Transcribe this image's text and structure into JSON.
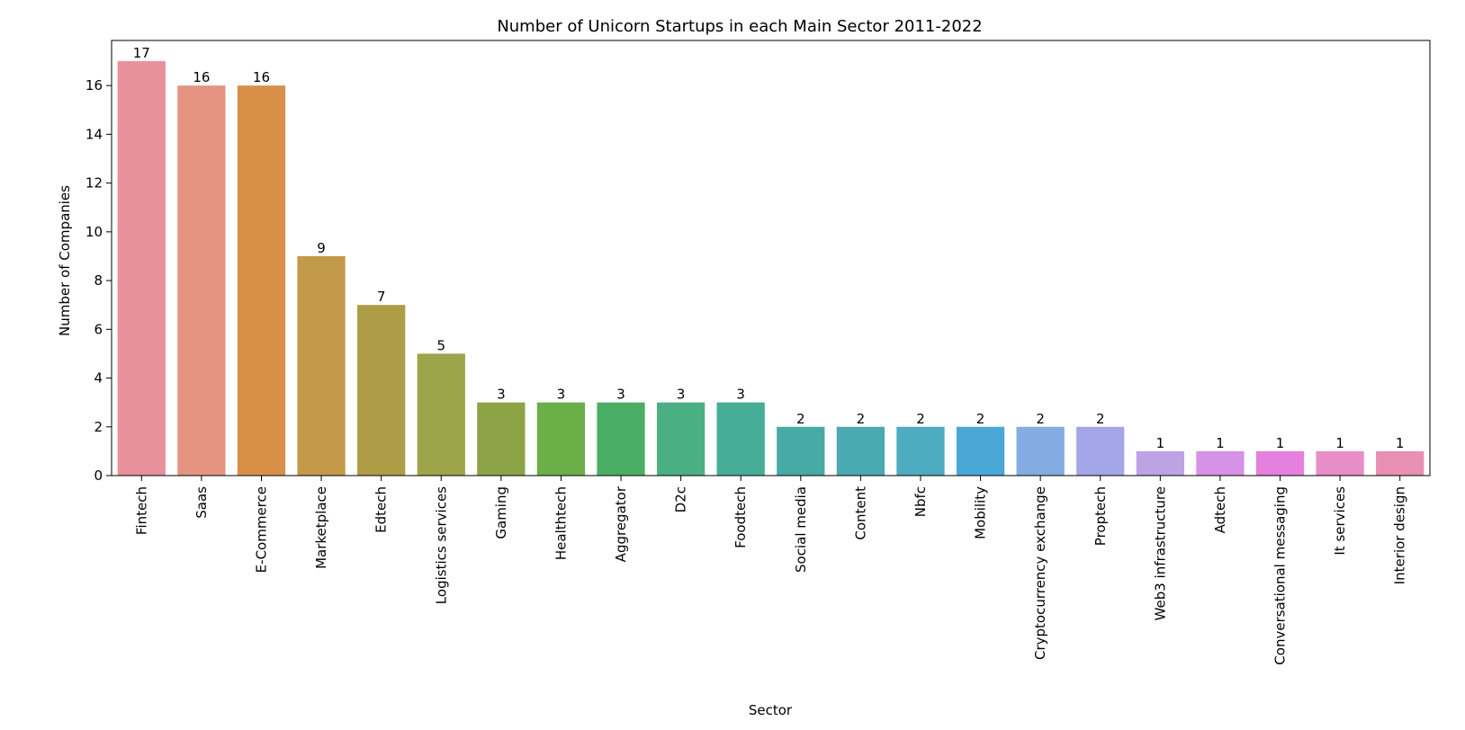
{
  "chart_data": {
    "type": "bar",
    "title": "Number of Unicorn Startups in each Main Sector 2011-2022",
    "xlabel": "Sector",
    "ylabel": "Number of Companies",
    "ylim": [
      0,
      17.85
    ],
    "yticks": [
      0,
      2,
      4,
      6,
      8,
      10,
      12,
      14,
      16
    ],
    "grid": false,
    "legend": "none",
    "categories": [
      "Fintech",
      "Saas",
      "E-Commerce",
      "Marketplace",
      "Edtech",
      "Logistics services",
      "Gaming",
      "Healthtech",
      "Aggregator",
      "D2c",
      "Foodtech",
      "Social media",
      "Content",
      "Nbfc",
      "Mobility",
      "Cryptocurrency exchange",
      "Proptech",
      "Web3 infrastructure",
      "Adtech",
      "Conversational messaging",
      "It services",
      "Interior design"
    ],
    "values": [
      17,
      16,
      16,
      9,
      7,
      5,
      3,
      3,
      3,
      3,
      3,
      2,
      2,
      2,
      2,
      2,
      2,
      1,
      1,
      1,
      1,
      1
    ],
    "colors": [
      "#e8909b",
      "#e59482",
      "#d89049",
      "#c29a49",
      "#ae9c47",
      "#9ea44a",
      "#8da446",
      "#6aaf47",
      "#4aaf64",
      "#4ab083",
      "#46ad97",
      "#47aaa5",
      "#4aa9b1",
      "#4eabc0",
      "#4aa8d6",
      "#82ace2",
      "#a3a6e8",
      "#bda3e6",
      "#d692e6",
      "#e680df",
      "#e78ec8",
      "#e88fb4"
    ]
  }
}
